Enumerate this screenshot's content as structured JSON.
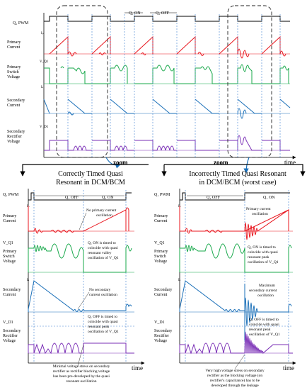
{
  "colors": {
    "pwm": "#000000",
    "primary": "#e8141c",
    "switch": "#17a84a",
    "secondary": "#1a6fb8",
    "rectifier": "#7a2fb6",
    "guide": "#3a7fd0",
    "zoom_box": "#222222"
  },
  "top": {
    "labels": {
      "pwm": "Q₁ PWM",
      "primary": [
        "Primary",
        "Current"
      ],
      "switch": [
        "Primary",
        "Switch",
        "Voltage"
      ],
      "secondary": [
        "Secondary",
        "Current"
      ],
      "rectifier": [
        "Secondary",
        "Rectifier",
        "Voltage"
      ]
    },
    "axis_symbols": {
      "ip": "Iₚ",
      "vq": "V_Q1",
      "is": "Iₛ",
      "vd": "V_D1"
    },
    "on_label": "Q₁ ON",
    "off_label": "Q₁ OFF",
    "time_label": "time",
    "zoom_label": "zoom"
  },
  "left_panel": {
    "heading": [
      "Correctly Timed Quasi",
      "Resonant in DCM/BCM"
    ],
    "pwm_label": "Q₁ PWM",
    "off_label": "Q₁ OFF",
    "on_label": "Q₁ ON",
    "row_labels": {
      "primary": [
        "Primary",
        "Current"
      ],
      "switch": [
        "Primary",
        "Switch",
        "Voltage"
      ],
      "secondary": [
        "Secondary",
        "Current"
      ],
      "rectifier": [
        "Secondary",
        "Rectifier",
        "Voltage"
      ]
    },
    "annotations": {
      "a1": [
        "No primary current",
        "oscillation"
      ],
      "a2": [
        "Q₁ ON is timed to",
        "coincide with quasi",
        "resonant valley",
        "oscillation of V_Q1"
      ],
      "a3": [
        "No secondary",
        "current oscillation"
      ],
      "a4": [
        "Q₁ OFF is timed to",
        "coincide with quasi",
        "resonant peak",
        "oscillation of V_Q1"
      ],
      "a5": [
        "Minimal voltage stress on secondary",
        "rectifier as rectifier blocking voltage",
        "has been pre-developed by the quasi",
        "resonant oscillation"
      ]
    },
    "time_label": "time"
  },
  "right_panel": {
    "heading": [
      "Incorrectly Timed Quasi Resonant",
      "in DCM/BCM (worst case)"
    ],
    "pwm_label": "Q₁ PWM",
    "off_label": "Q₁ OFF",
    "on_label": "Q₁ ON",
    "row_labels": {
      "primary": [
        "Primary",
        "Current"
      ],
      "switch": [
        "Primary",
        "Switch",
        "Voltage"
      ],
      "secondary": [
        "Secondary",
        "Current"
      ],
      "rectifier": [
        "Secondary",
        "Rectifier",
        "Voltage"
      ]
    },
    "annotations": {
      "a1": [
        "Primary current",
        "oscillation"
      ],
      "a2": [
        "Q₁ ON is timed to",
        "coincide with quasi",
        "resonant peak",
        "oscillation of V_Q1"
      ],
      "a3": [
        "Maximum",
        "secondary current",
        "oscillation"
      ],
      "a4": [
        "Q₁ OFF is timed to",
        "coincide with quasi",
        "resonant peak",
        "oscillation of V_Q1"
      ],
      "a5": [
        "Very high voltage stress on secondary",
        "rectifier as the blocking voltage (on",
        "rectifier's capacitance) has to be",
        "developed through the leakage"
      ]
    },
    "time_label": "time"
  }
}
